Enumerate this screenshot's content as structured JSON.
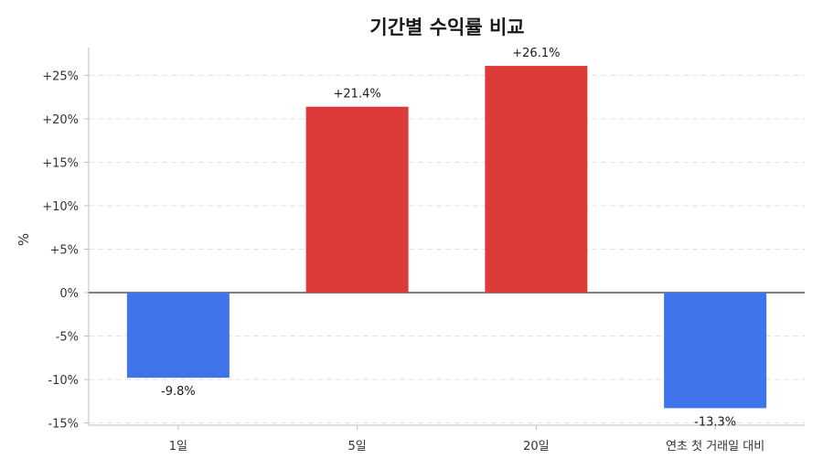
{
  "chart_data": {
    "type": "bar",
    "title": "기간별 수익률 비교",
    "xlabel": "",
    "ylabel": "%",
    "categories": [
      "1일",
      "5일",
      "20일",
      "연초 첫 거래일 대비"
    ],
    "values": [
      -9.8,
      21.4,
      26.1,
      -13.3
    ],
    "data_labels": [
      "-9.8%",
      "+21.4%",
      "+26.1%",
      "-13.3%"
    ],
    "ylim": [
      -15,
      28
    ],
    "yticks": [
      -15,
      -10,
      -5,
      0,
      5,
      10,
      15,
      20,
      25
    ],
    "ytick_labels": [
      "-15%",
      "-10%",
      "-5%",
      "0%",
      "+5%",
      "+10%",
      "+15%",
      "+20%",
      "+25%"
    ],
    "grid": true,
    "colors": {
      "positive": "#dd3a3a",
      "negative": "#3f74ea"
    }
  }
}
